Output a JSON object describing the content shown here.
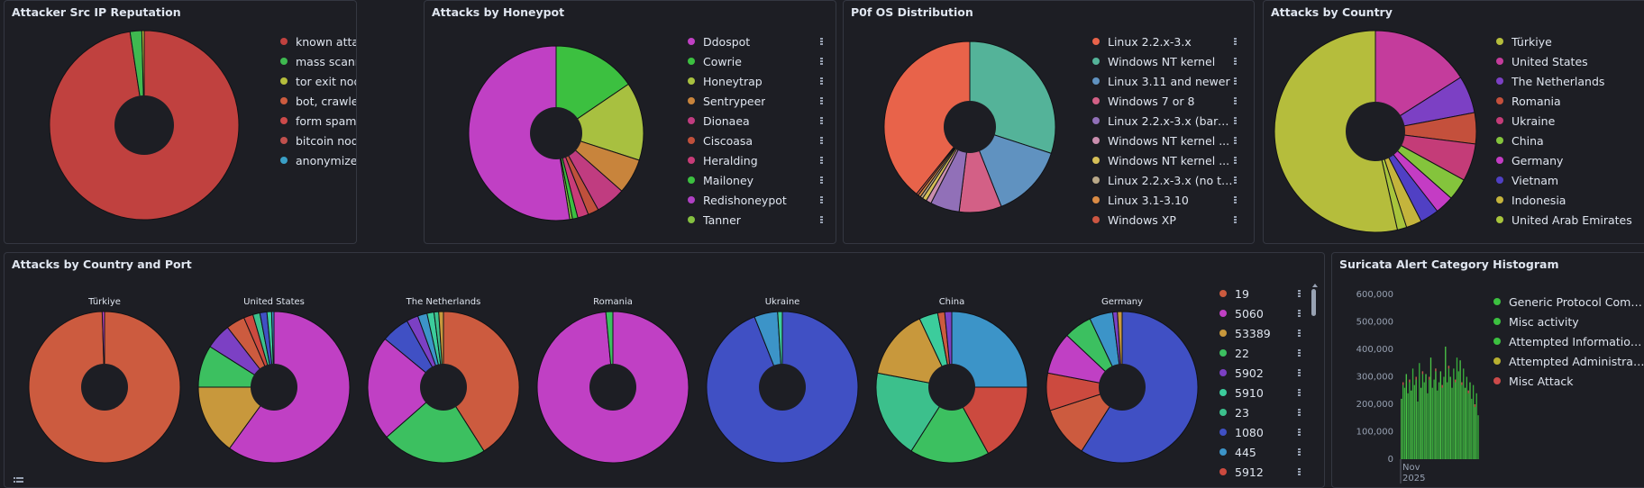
{
  "panels": [
    {
      "id": "rep",
      "title": "Attacker Src IP Reputation"
    },
    {
      "id": "hp",
      "title": "Attacks by Honeypot"
    },
    {
      "id": "os",
      "title": "P0f OS Distribution"
    },
    {
      "id": "country",
      "title": "Attacks by Country"
    },
    {
      "id": "cport",
      "title": "Attacks by Country and Port"
    },
    {
      "id": "suri",
      "title": "Suricata Alert Category Histogram"
    }
  ],
  "colors": {
    "background": "#1d1e24",
    "border": "#343741",
    "text": "#dfe5ef"
  },
  "chart_data": [
    {
      "id": "rep",
      "type": "pie",
      "donut": true,
      "legend": [
        {
          "label": "known attacker",
          "color": "#c0413f"
        },
        {
          "label": "mass scanner",
          "color": "#3fb950"
        },
        {
          "label": "tor exit node",
          "color": "#b5bd3c"
        },
        {
          "label": "bot, crawler",
          "color": "#cc5b3f"
        },
        {
          "label": "form spammer",
          "color": "#cc4a4a"
        },
        {
          "label": "bitcoin node",
          "color": "#c0504d"
        },
        {
          "label": "anonymizer",
          "color": "#3a9fc6"
        }
      ],
      "slices": [
        {
          "label": "known attacker",
          "value": 97.6,
          "color": "#c0413f"
        },
        {
          "label": "mass scanner",
          "value": 2.0,
          "color": "#3fb950"
        },
        {
          "label": "tor exit node",
          "value": 0.4,
          "color": "#b5bd3c"
        }
      ]
    },
    {
      "id": "hp",
      "type": "pie",
      "donut": true,
      "legend": [
        {
          "label": "Ddospot",
          "color": "#c040c4"
        },
        {
          "label": "Cowrie",
          "color": "#3cc040"
        },
        {
          "label": "Honeytrap",
          "color": "#a8c040"
        },
        {
          "label": "Sentrypeer",
          "color": "#c8843c"
        },
        {
          "label": "Dionaea",
          "color": "#c03c80"
        },
        {
          "label": "Ciscoasa",
          "color": "#c0503c"
        },
        {
          "label": "Heralding",
          "color": "#c83c78"
        },
        {
          "label": "Mailoney",
          "color": "#3cc040"
        },
        {
          "label": "Redishoneypot",
          "color": "#b040c4"
        },
        {
          "label": "Tanner",
          "color": "#84c040"
        }
      ],
      "slices": [
        {
          "label": "Cowrie",
          "value": 15.5,
          "color": "#3cc040"
        },
        {
          "label": "Honeytrap",
          "value": 14.5,
          "color": "#a8c040"
        },
        {
          "label": "Sentrypeer",
          "value": 6.5,
          "color": "#c8843c"
        },
        {
          "label": "Dionaea",
          "value": 5.5,
          "color": "#c03c80"
        },
        {
          "label": "Ciscoasa",
          "value": 2.0,
          "color": "#c0503c"
        },
        {
          "label": "Heralding",
          "value": 2.0,
          "color": "#c83c78"
        },
        {
          "label": "Mailoney",
          "value": 1.0,
          "color": "#3cc040"
        },
        {
          "label": "Tanner",
          "value": 0.5,
          "color": "#84c040"
        },
        {
          "label": "Ddospot",
          "value": 52.5,
          "color": "#c040c4"
        }
      ]
    },
    {
      "id": "os",
      "type": "pie",
      "donut": true,
      "legend": [
        {
          "label": "Linux 2.2.x-3.x",
          "color": "#e8634a"
        },
        {
          "label": "Windows NT kernel",
          "color": "#54b399"
        },
        {
          "label": "Linux 3.11 and newer",
          "color": "#6092c0"
        },
        {
          "label": "Windows 7 or 8",
          "color": "#d36086"
        },
        {
          "label": "Linux 2.2.x-3.x (bare...",
          "color": "#9170b8"
        },
        {
          "label": "Windows NT kernel ...",
          "color": "#ca8eae"
        },
        {
          "label": "Windows NT kernel ...",
          "color": "#d6bf57"
        },
        {
          "label": "Linux 2.2.x-3.x (no ti...",
          "color": "#b9a888"
        },
        {
          "label": "Linux 3.1-3.10",
          "color": "#da8b45"
        },
        {
          "label": "Windows XP",
          "color": "#cc5642"
        }
      ],
      "slices": [
        {
          "label": "Windows NT kernel",
          "value": 30,
          "color": "#54b399"
        },
        {
          "label": "Linux 3.11 and newer",
          "value": 14,
          "color": "#6092c0"
        },
        {
          "label": "Windows 7 or 8",
          "value": 8,
          "color": "#d36086"
        },
        {
          "label": "Linux 2.2.x-3.x (bare...",
          "value": 5.5,
          "color": "#9170b8"
        },
        {
          "label": "Windows NT kernel ...",
          "value": 1.0,
          "color": "#ca8eae"
        },
        {
          "label": "Windows NT kernel ...",
          "value": 0.8,
          "color": "#d6bf57"
        },
        {
          "label": "Linux 2.2.x-3.x (no ti...",
          "value": 0.5,
          "color": "#b9a888"
        },
        {
          "label": "Linux 3.1-3.10",
          "value": 0.5,
          "color": "#da8b45"
        },
        {
          "label": "Windows XP",
          "value": 0.4,
          "color": "#cc5642"
        },
        {
          "label": "Linux 2.2.x-3.x",
          "value": 39.3,
          "color": "#e8634a"
        }
      ]
    },
    {
      "id": "country",
      "type": "pie",
      "donut": true,
      "legend": [
        {
          "label": "Türkiye",
          "color": "#b5bd3c"
        },
        {
          "label": "United States",
          "color": "#c43c9c"
        },
        {
          "label": "The Netherlands",
          "color": "#7c40c4"
        },
        {
          "label": "Romania",
          "color": "#c4503c"
        },
        {
          "label": "Ukraine",
          "color": "#c43c78"
        },
        {
          "label": "China",
          "color": "#84c43c"
        },
        {
          "label": "Germany",
          "color": "#c43cc4"
        },
        {
          "label": "Vietnam",
          "color": "#5040c4"
        },
        {
          "label": "Indonesia",
          "color": "#c4b43c"
        },
        {
          "label": "United Arab Emirates",
          "color": "#a8c43c"
        }
      ],
      "slices": [
        {
          "label": "United States",
          "value": 16,
          "color": "#c43c9c"
        },
        {
          "label": "The Netherlands",
          "value": 6,
          "color": "#7c40c4"
        },
        {
          "label": "Romania",
          "value": 5,
          "color": "#c4503c"
        },
        {
          "label": "Ukraine",
          "value": 6,
          "color": "#c43c78"
        },
        {
          "label": "China",
          "value": 3.5,
          "color": "#84c43c"
        },
        {
          "label": "Germany",
          "value": 3,
          "color": "#c43cc4"
        },
        {
          "label": "Vietnam",
          "value": 3,
          "color": "#5040c4"
        },
        {
          "label": "Indonesia",
          "value": 2.5,
          "color": "#c4b43c"
        },
        {
          "label": "United Arab Emirates",
          "value": 1.5,
          "color": "#a8c43c"
        },
        {
          "label": "Türkiye",
          "value": 53.5,
          "color": "#b5bd3c"
        }
      ]
    },
    {
      "id": "cport",
      "type": "pie",
      "donut": true,
      "legend": [
        {
          "label": "19",
          "color": "#cc5b3f"
        },
        {
          "label": "5060",
          "color": "#c040c4"
        },
        {
          "label": "53389",
          "color": "#c8983c"
        },
        {
          "label": "22",
          "color": "#3cc060"
        },
        {
          "label": "5902",
          "color": "#7c40c4"
        },
        {
          "label": "5910",
          "color": "#3ccc9c"
        },
        {
          "label": "23",
          "color": "#3cc08c"
        },
        {
          "label": "1080",
          "color": "#4050c4"
        },
        {
          "label": "445",
          "color": "#3c94c8"
        },
        {
          "label": "5912",
          "color": "#cc4a3f"
        }
      ],
      "pies": [
        {
          "title": "Türkiye",
          "slices": [
            {
              "label": "19",
              "value": 99.5,
              "color": "#cc5b3f"
            },
            {
              "label": "5060",
              "value": 0.5,
              "color": "#c040c4"
            }
          ]
        },
        {
          "title": "United States",
          "slices": [
            {
              "label": "5060",
              "value": 60,
              "color": "#c040c4"
            },
            {
              "label": "53389",
              "value": 15,
              "color": "#c8983c"
            },
            {
              "label": "22",
              "value": 9,
              "color": "#3cc060"
            },
            {
              "label": "5902",
              "value": 5.5,
              "color": "#7c40c4"
            },
            {
              "label": "19",
              "value": 4,
              "color": "#cc5b3f"
            },
            {
              "label": "5912",
              "value": 2,
              "color": "#cc4a3f"
            },
            {
              "label": "23",
              "value": 1.5,
              "color": "#3cc08c"
            },
            {
              "label": "1080",
              "value": 1.5,
              "color": "#4050c4"
            },
            {
              "label": "5910",
              "value": 1,
              "color": "#3ccc9c"
            },
            {
              "label": "445",
              "value": 0.5,
              "color": "#3c94c8"
            }
          ]
        },
        {
          "title": "The Netherlands",
          "slices": [
            {
              "label": "19",
              "value": 41,
              "color": "#cc5b3f"
            },
            {
              "label": "22",
              "value": 22.5,
              "color": "#3cc060"
            },
            {
              "label": "5060",
              "value": 22.5,
              "color": "#c040c4"
            },
            {
              "label": "1080",
              "value": 6,
              "color": "#4050c4"
            },
            {
              "label": "5902",
              "value": 2.5,
              "color": "#7c40c4"
            },
            {
              "label": "445",
              "value": 2,
              "color": "#3c94c8"
            },
            {
              "label": "5910",
              "value": 1.5,
              "color": "#3ccc9c"
            },
            {
              "label": "23",
              "value": 1,
              "color": "#3cc08c"
            },
            {
              "label": "53389",
              "value": 1,
              "color": "#c8983c"
            }
          ]
        },
        {
          "title": "Romania",
          "slices": [
            {
              "label": "5060",
              "value": 98.5,
              "color": "#c040c4"
            },
            {
              "label": "22",
              "value": 1.5,
              "color": "#3cc060"
            }
          ]
        },
        {
          "title": "Ukraine",
          "slices": [
            {
              "label": "1080",
              "value": 94,
              "color": "#4050c4"
            },
            {
              "label": "445",
              "value": 5,
              "color": "#3c94c8"
            },
            {
              "label": "5910",
              "value": 1,
              "color": "#3ccc9c"
            }
          ]
        },
        {
          "title": "China",
          "slices": [
            {
              "label": "445",
              "value": 25,
              "color": "#3c94c8"
            },
            {
              "label": "5912",
              "value": 17,
              "color": "#cc4a3f"
            },
            {
              "label": "22",
              "value": 17,
              "color": "#3cc060"
            },
            {
              "label": "23",
              "value": 19,
              "color": "#3cc08c"
            },
            {
              "label": "53389",
              "value": 15,
              "color": "#c8983c"
            },
            {
              "label": "5910",
              "value": 4,
              "color": "#3ccc9c"
            },
            {
              "label": "19",
              "value": 1.5,
              "color": "#cc5b3f"
            },
            {
              "label": "5902",
              "value": 1.5,
              "color": "#7c40c4"
            }
          ]
        },
        {
          "title": "Germany",
          "slices": [
            {
              "label": "1080",
              "value": 59,
              "color": "#4050c4"
            },
            {
              "label": "19",
              "value": 11,
              "color": "#cc5b3f"
            },
            {
              "label": "5912",
              "value": 8,
              "color": "#cc4a3f"
            },
            {
              "label": "5060",
              "value": 9,
              "color": "#c040c4"
            },
            {
              "label": "22",
              "value": 6,
              "color": "#3cc060"
            },
            {
              "label": "445",
              "value": 5,
              "color": "#3c94c8"
            },
            {
              "label": "5902",
              "value": 1,
              "color": "#7c40c4"
            },
            {
              "label": "53389",
              "value": 1,
              "color": "#c8983c"
            }
          ]
        }
      ]
    },
    {
      "id": "suri",
      "type": "bar",
      "stacked": true,
      "yticks": [
        "600,000",
        "500,000",
        "400,000",
        "300,000",
        "200,000",
        "100,000",
        "0"
      ],
      "ytick_values": [
        600000,
        500000,
        400000,
        300000,
        200000,
        100000,
        0
      ],
      "ylim": [
        0,
        600000
      ],
      "xlabel_month": "Nov",
      "xlabel_year": "2025",
      "legend": [
        {
          "label": "Generic Protocol Comm...",
          "color": "#3cc040"
        },
        {
          "label": "Misc activity",
          "color": "#3cc040"
        },
        {
          "label": "Attempted Information L...",
          "color": "#3cc040"
        },
        {
          "label": "Attempted Administrato...",
          "color": "#b8b030"
        },
        {
          "label": "Misc Attack",
          "color": "#cc4a4a"
        }
      ],
      "values": [
        220000,
        280000,
        260000,
        310000,
        240000,
        290000,
        250000,
        330000,
        270000,
        300000,
        210000,
        350000,
        260000,
        320000,
        280000,
        310000,
        240000,
        300000,
        370000,
        260000,
        290000,
        330000,
        250000,
        280000,
        320000,
        270000,
        300000,
        410000,
        280000,
        340000,
        300000,
        260000,
        330000,
        290000,
        370000,
        320000,
        360000,
        280000,
        330000,
        260000,
        300000,
        250000,
        280000,
        220000,
        270000,
        200000,
        240000,
        160000
      ]
    }
  ]
}
